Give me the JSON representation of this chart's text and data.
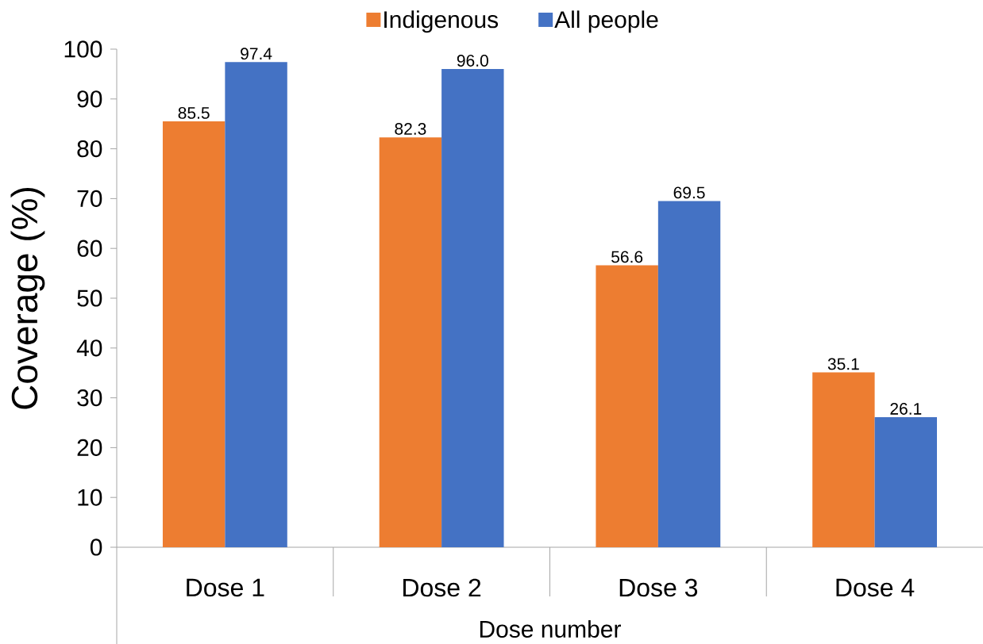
{
  "chart_data": {
    "type": "bar",
    "xlabel": "Dose number",
    "ylabel": "Coverage (%)",
    "categories": [
      "Dose 1",
      "Dose 2",
      "Dose 3",
      "Dose 4"
    ],
    "series": [
      {
        "name": "Indigenous",
        "color": "#ed7d31",
        "values": [
          85.5,
          82.3,
          56.6,
          35.1
        ],
        "value_labels": [
          "85.5",
          "82.3",
          "56.6",
          "35.1"
        ]
      },
      {
        "name": "All people",
        "color": "#4472c4",
        "values": [
          97.4,
          96.0,
          69.5,
          26.1
        ],
        "value_labels": [
          "97.4",
          "96.0",
          "69.5",
          "26.1"
        ]
      }
    ],
    "ylim": [
      0,
      100
    ],
    "yticks": [
      0,
      10,
      20,
      30,
      40,
      50,
      60,
      70,
      80,
      90,
      100
    ],
    "legend": "top"
  }
}
